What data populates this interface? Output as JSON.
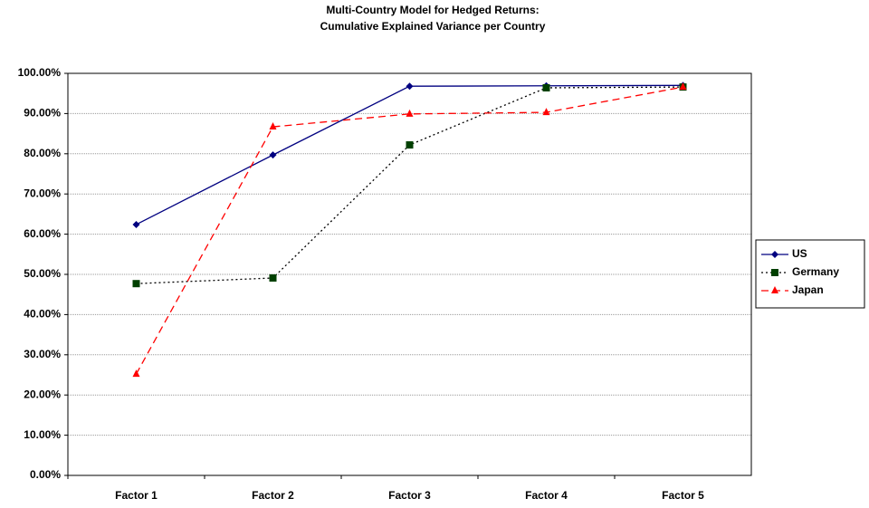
{
  "chart_data": {
    "type": "line",
    "title": [
      "Multi-Country Model for Hedged Returns:",
      "Cumulative Explained Variance per Country"
    ],
    "categories": [
      "Factor 1",
      "Factor 2",
      "Factor 3",
      "Factor 4",
      "Factor 5"
    ],
    "series": [
      {
        "name": "US",
        "color": "#000080",
        "line_color": "#000080",
        "line_style": "solid",
        "marker": "diamond",
        "values": [
          62.4,
          79.7,
          96.8,
          96.9,
          97.0
        ]
      },
      {
        "name": "Germany",
        "color": "#004000",
        "line_color": "#000000",
        "line_style": "dotted",
        "marker": "square",
        "values": [
          47.7,
          49.1,
          82.2,
          96.4,
          96.6
        ]
      },
      {
        "name": "Japan",
        "color": "#ff0000",
        "line_color": "#ff0000",
        "line_style": "dashed",
        "marker": "triangle",
        "values": [
          25.2,
          86.7,
          89.9,
          90.3,
          96.6
        ]
      }
    ],
    "ylim": [
      0,
      100
    ],
    "yticks": [
      {
        "value": 0,
        "label": "0.00%"
      },
      {
        "value": 10,
        "label": "10.00%"
      },
      {
        "value": 20,
        "label": "20.00%"
      },
      {
        "value": 30,
        "label": "30.00%"
      },
      {
        "value": 40,
        "label": "40.00%"
      },
      {
        "value": 50,
        "label": "50.00%"
      },
      {
        "value": 60,
        "label": "60.00%"
      },
      {
        "value": 70,
        "label": "70.00%"
      },
      {
        "value": 80,
        "label": "80.00%"
      },
      {
        "value": 90,
        "label": "90.00%"
      },
      {
        "value": 100,
        "label": "100.00%"
      }
    ],
    "grid": true,
    "legend": "right"
  }
}
